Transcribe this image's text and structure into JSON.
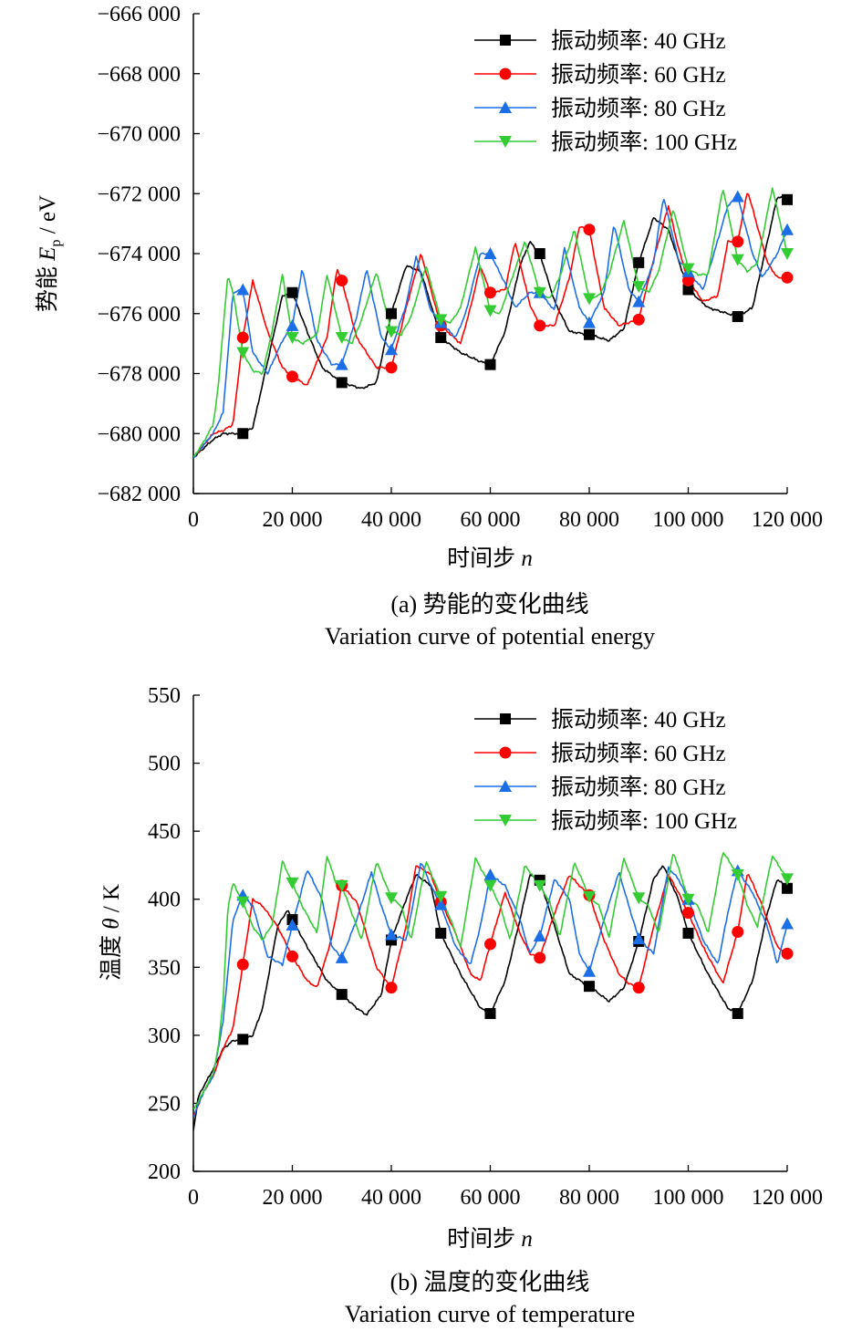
{
  "chart_data": [
    {
      "type": "line",
      "caption_cn": "(a) 势能的变化曲线",
      "caption_en": "Variation curve of potential energy",
      "xlabel_main": "时间步",
      "xlabel_var": "n",
      "ylabel_main": "势能",
      "ylabel_var": "E",
      "ylabel_sub": "p",
      "ylabel_unit": " / eV",
      "xlim": [
        0,
        120000
      ],
      "ylim": [
        -682000,
        -666000
      ],
      "xticks": [
        0,
        20000,
        40000,
        60000,
        80000,
        100000,
        120000
      ],
      "xtick_labels": [
        "0",
        "20 000",
        "40 000",
        "60 000",
        "80 000",
        "100 000",
        "120 000"
      ],
      "yticks": [
        -666000,
        -668000,
        -670000,
        -672000,
        -674000,
        -676000,
        -678000,
        -680000,
        -682000
      ],
      "ytick_labels": [
        "−666 000",
        "−668 000",
        "−670 000",
        "−672 000",
        "−674 000",
        "−676 000",
        "−678 000",
        "−680 000",
        "−682 000"
      ],
      "legend_position": "top-right",
      "series": [
        {
          "name": "振动频率: 40 GHz",
          "color": "#000000",
          "marker": "square",
          "x": [
            0,
            2000,
            4000,
            6000,
            8000,
            10000,
            12000,
            15000,
            18000,
            20000,
            23000,
            26000,
            30000,
            34000,
            37000,
            40000,
            43000,
            46000,
            50000,
            54000,
            58000,
            60000,
            63000,
            66000,
            68000,
            70000,
            73000,
            76000,
            80000,
            84000,
            87000,
            90000,
            93000,
            96000,
            100000,
            104000,
            108000,
            110000,
            113000,
            116000,
            118000,
            120000
          ],
          "y": [
            -680800,
            -680500,
            -680200,
            -680000,
            -680000,
            -680000,
            -679800,
            -677600,
            -675400,
            -675300,
            -676600,
            -677800,
            -678300,
            -678500,
            -678300,
            -676000,
            -674400,
            -674600,
            -676800,
            -677300,
            -677600,
            -677700,
            -676600,
            -674400,
            -673600,
            -674000,
            -675600,
            -676600,
            -676700,
            -676900,
            -676500,
            -674300,
            -672800,
            -673200,
            -675200,
            -675800,
            -676000,
            -676100,
            -675800,
            -673600,
            -672100,
            -672200
          ]
        },
        {
          "name": "振动频率: 60 GHz",
          "color": "#ff0000",
          "marker": "circle",
          "x": [
            0,
            2000,
            4000,
            6000,
            8000,
            10000,
            12000,
            15000,
            18000,
            20000,
            23000,
            27000,
            29000,
            30000,
            33000,
            37000,
            40000,
            43000,
            46000,
            50000,
            54000,
            56000,
            58000,
            60000,
            63000,
            65000,
            68000,
            70000,
            73000,
            76000,
            78000,
            80000,
            83000,
            86000,
            88000,
            90000,
            93000,
            96000,
            98000,
            100000,
            103000,
            106000,
            108000,
            110000,
            112000,
            114000,
            116000,
            118000,
            120000
          ],
          "y": [
            -680800,
            -680400,
            -680000,
            -679900,
            -679700,
            -676800,
            -674900,
            -676600,
            -677800,
            -678100,
            -678400,
            -676800,
            -674500,
            -674900,
            -676800,
            -677800,
            -677800,
            -675800,
            -674000,
            -676400,
            -677000,
            -675800,
            -674400,
            -675300,
            -675200,
            -673600,
            -675700,
            -676400,
            -676400,
            -674800,
            -673100,
            -673200,
            -675800,
            -676400,
            -676300,
            -676200,
            -674200,
            -672400,
            -673800,
            -674900,
            -675600,
            -675400,
            -673600,
            -673600,
            -671900,
            -673100,
            -674300,
            -674800,
            -674800
          ]
        },
        {
          "name": "振动频率: 80 GHz",
          "color": "#1c6ee6",
          "marker": "triangle-up",
          "x": [
            0,
            2000,
            4000,
            6000,
            7000,
            8000,
            10000,
            12000,
            15000,
            18000,
            20000,
            22000,
            25000,
            28000,
            30000,
            33000,
            35000,
            38000,
            40000,
            43000,
            45000,
            48000,
            50000,
            53000,
            55000,
            58000,
            60000,
            63000,
            65000,
            68000,
            70000,
            73000,
            75000,
            78000,
            80000,
            83000,
            85000,
            88000,
            90000,
            93000,
            95000,
            98000,
            100000,
            103000,
            105000,
            108000,
            110000,
            113000,
            115000,
            118000,
            120000
          ],
          "y": [
            -680800,
            -680400,
            -680000,
            -679300,
            -677300,
            -675300,
            -675200,
            -677300,
            -678000,
            -676900,
            -676400,
            -674500,
            -676900,
            -677700,
            -677700,
            -676100,
            -674500,
            -676800,
            -677200,
            -675700,
            -674100,
            -675900,
            -676300,
            -676800,
            -676000,
            -674000,
            -674000,
            -675000,
            -675800,
            -675300,
            -675300,
            -675900,
            -673800,
            -675800,
            -676300,
            -675300,
            -673000,
            -675200,
            -675600,
            -674300,
            -672100,
            -674200,
            -674600,
            -675200,
            -674100,
            -672400,
            -672100,
            -674000,
            -674800,
            -674000,
            -673200
          ]
        },
        {
          "name": "振动频率: 100 GHz",
          "color": "#33cc33",
          "marker": "triangle-down",
          "x": [
            0,
            2000,
            4000,
            5000,
            6000,
            7000,
            8000,
            10000,
            12000,
            14000,
            16000,
            18000,
            20000,
            22000,
            25000,
            27000,
            29000,
            30000,
            32000,
            34000,
            37000,
            40000,
            42000,
            44000,
            47000,
            50000,
            52000,
            54000,
            57000,
            60000,
            62000,
            64000,
            67000,
            70000,
            72000,
            74000,
            77000,
            80000,
            82000,
            84000,
            87000,
            90000,
            92000,
            94000,
            97000,
            100000,
            102000,
            104000,
            107000,
            110000,
            112000,
            114000,
            117000,
            120000
          ],
          "y": [
            -680800,
            -680300,
            -679700,
            -678500,
            -676500,
            -674700,
            -675300,
            -677300,
            -677900,
            -678000,
            -676500,
            -674700,
            -676800,
            -677000,
            -676700,
            -674700,
            -676100,
            -676800,
            -677000,
            -676200,
            -674600,
            -676600,
            -676700,
            -676100,
            -674400,
            -676200,
            -676300,
            -675800,
            -673800,
            -675900,
            -676000,
            -675000,
            -673600,
            -675300,
            -675500,
            -674800,
            -673200,
            -675500,
            -675400,
            -674700,
            -672900,
            -675100,
            -675300,
            -674600,
            -672500,
            -674500,
            -674700,
            -674700,
            -671800,
            -674200,
            -674600,
            -674300,
            -671800,
            -674000
          ]
        }
      ]
    },
    {
      "type": "line",
      "caption_cn": "(b) 温度的变化曲线",
      "caption_en": "Variation curve of temperature",
      "xlabel_main": "时间步",
      "xlabel_var": "n",
      "ylabel_main": "温度",
      "ylabel_var": "θ",
      "ylabel_unit": " / K",
      "xlim": [
        0,
        120000
      ],
      "ylim": [
        200,
        550
      ],
      "xticks": [
        0,
        20000,
        40000,
        60000,
        80000,
        100000,
        120000
      ],
      "xtick_labels": [
        "0",
        "20 000",
        "40 000",
        "60 000",
        "80 000",
        "100 000",
        "120 000"
      ],
      "yticks": [
        550,
        500,
        450,
        400,
        350,
        300,
        250,
        200
      ],
      "ytick_labels": [
        "550",
        "500",
        "450",
        "400",
        "350",
        "300",
        "250",
        "200"
      ],
      "legend_position": "top-right",
      "series": [
        {
          "name": "振动频率: 40 GHz",
          "color": "#000000",
          "marker": "square",
          "x": [
            0,
            1000,
            2000,
            4000,
            6000,
            8000,
            10000,
            12000,
            14000,
            17000,
            19000,
            20000,
            23000,
            27000,
            30000,
            33000,
            35000,
            38000,
            40000,
            43000,
            45000,
            48000,
            50000,
            54000,
            58000,
            60000,
            63000,
            66000,
            68000,
            70000,
            73000,
            76000,
            80000,
            84000,
            87000,
            90000,
            93000,
            95000,
            98000,
            100000,
            104000,
            108000,
            110000,
            113000,
            116000,
            118000,
            120000
          ],
          "y": [
            230,
            255,
            262,
            275,
            290,
            296,
            297,
            300,
            320,
            380,
            392,
            385,
            365,
            340,
            330,
            320,
            315,
            330,
            370,
            400,
            418,
            410,
            375,
            345,
            320,
            316,
            340,
            385,
            418,
            414,
            380,
            345,
            336,
            325,
            335,
            369,
            415,
            425,
            400,
            375,
            345,
            320,
            316,
            340,
            390,
            415,
            408
          ]
        },
        {
          "name": "振动频率: 60 GHz",
          "color": "#ff0000",
          "marker": "circle",
          "x": [
            0,
            2000,
            4000,
            6000,
            8000,
            10000,
            12000,
            14000,
            17000,
            20000,
            23000,
            25000,
            28000,
            30000,
            33000,
            37000,
            40000,
            43000,
            45000,
            48000,
            50000,
            53000,
            56000,
            58000,
            60000,
            63000,
            66000,
            68000,
            70000,
            73000,
            76000,
            78000,
            80000,
            83000,
            86000,
            88000,
            90000,
            93000,
            96000,
            98000,
            100000,
            103000,
            107000,
            110000,
            112000,
            115000,
            118000,
            120000
          ],
          "y": [
            240,
            258,
            270,
            290,
            305,
            352,
            400,
            395,
            380,
            358,
            340,
            335,
            372,
            410,
            398,
            350,
            335,
            380,
            425,
            418,
            398,
            375,
            345,
            340,
            367,
            405,
            375,
            360,
            357,
            390,
            418,
            410,
            403,
            370,
            345,
            338,
            335,
            380,
            418,
            405,
            390,
            365,
            338,
            376,
            420,
            395,
            365,
            360
          ]
        },
        {
          "name": "振动频率: 80 GHz",
          "color": "#1c6ee6",
          "marker": "triangle-up",
          "x": [
            0,
            2000,
            4000,
            5000,
            6000,
            8000,
            10000,
            12000,
            15000,
            18000,
            20000,
            23000,
            26000,
            28000,
            30000,
            33000,
            36000,
            38000,
            40000,
            43000,
            46000,
            48000,
            50000,
            53000,
            56000,
            58000,
            60000,
            63000,
            66000,
            68000,
            70000,
            73000,
            76000,
            78000,
            80000,
            83000,
            86000,
            88000,
            90000,
            93000,
            96000,
            98000,
            100000,
            103000,
            106000,
            108000,
            110000,
            113000,
            116000,
            118000,
            120000
          ],
          "y": [
            240,
            258,
            270,
            290,
            310,
            385,
            403,
            395,
            358,
            352,
            381,
            422,
            400,
            365,
            357,
            385,
            420,
            395,
            374,
            370,
            428,
            410,
            396,
            365,
            352,
            380,
            418,
            410,
            385,
            360,
            373,
            415,
            400,
            360,
            347,
            385,
            420,
            395,
            371,
            360,
            423,
            415,
            400,
            370,
            352,
            390,
            421,
            405,
            380,
            352,
            382
          ]
        },
        {
          "name": "振动频率: 100 GHz",
          "color": "#33cc33",
          "marker": "triangle-down",
          "x": [
            0,
            2000,
            4000,
            5000,
            6000,
            7000,
            8000,
            10000,
            12000,
            14000,
            16000,
            18000,
            20000,
            22000,
            25000,
            27000,
            29000,
            30000,
            32000,
            34000,
            37000,
            40000,
            42000,
            44000,
            47000,
            50000,
            52000,
            54000,
            57000,
            60000,
            62000,
            64000,
            67000,
            70000,
            72000,
            74000,
            77000,
            80000,
            82000,
            84000,
            87000,
            90000,
            92000,
            94000,
            97000,
            100000,
            102000,
            104000,
            107000,
            110000,
            112000,
            114000,
            117000,
            120000
          ],
          "y": [
            245,
            258,
            272,
            290,
            325,
            395,
            412,
            398,
            380,
            370,
            382,
            428,
            412,
            395,
            375,
            432,
            410,
            410,
            390,
            370,
            428,
            401,
            395,
            370,
            428,
            402,
            385,
            365,
            430,
            410,
            395,
            370,
            425,
            410,
            398,
            372,
            427,
            402,
            395,
            372,
            430,
            401,
            395,
            375,
            435,
            400,
            395,
            375,
            435,
            418,
            395,
            380,
            432,
            415
          ]
        }
      ]
    }
  ]
}
